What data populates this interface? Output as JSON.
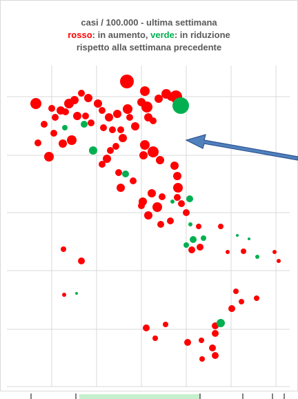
{
  "chart_data": {
    "type": "scatter",
    "title": "casi / 100.000 - ultima settimana",
    "subtitle": [
      "rosso",
      ": in aumento, ",
      "verde",
      ": in riduzione"
    ],
    "subtitle_colors": [
      "#ff0000",
      "#595959",
      "#00b050",
      "#595959"
    ],
    "note": "rispetto alla settimana precedente",
    "xlim": [
      10,
      420
    ],
    "ylim": [
      560,
      95
    ],
    "xticks": [
      75,
      140,
      205,
      270,
      335,
      400
    ],
    "yticks": [
      477,
      392,
      308,
      225,
      140
    ],
    "grid": true,
    "series": [
      {
        "color": "#ff0000",
        "x": [
          52,
          75,
          64,
          80,
          88,
          95,
          100,
          108,
          112,
          118,
          128,
          124,
          132,
          142,
          148,
          150,
          158,
          163,
          170,
          175,
          178,
          184,
          185,
          188,
          196,
          205,
          210,
          213,
          215,
          222,
          230,
          241,
          248,
          255,
          210,
          222,
          232,
          208,
          78,
          91,
          104,
          71,
          55,
          148,
          155,
          160,
          168,
          172,
          175,
          193,
          207,
          220,
          228,
          215,
          233,
          247,
          253,
          257,
          258,
          257,
          263,
          235,
          270,
          288,
          278,
          290,
          320,
          92,
          118,
          330,
          353,
          398,
          404,
          93,
          342,
          350,
          372,
          336,
          212,
          240,
          312,
          272,
          292,
          312,
          308,
          225,
          293,
          312,
          205
        ],
        "y": [
          150,
          157,
          180,
          170,
          160,
          162,
          150,
          145,
          168,
          135,
          142,
          168,
          178,
          150,
          160,
          185,
          170,
          188,
          165,
          188,
          200,
          118,
          158,
          170,
          183,
          148,
          132,
          155,
          170,
          175,
          143,
          136,
          140,
          140,
          210,
          220,
          232,
          225,
          193,
          208,
          203,
          227,
          207,
          238,
          230,
          218,
          212,
          250,
          272,
          262,
          292,
          280,
          300,
          312,
          325,
          320,
          240,
          255,
          272,
          286,
          295,
          285,
          308,
          328,
          362,
          358,
          328,
          361,
          378,
          365,
          364,
          365,
          378,
          427,
          422,
          437,
          432,
          447,
          475,
          470,
          472,
          496,
          493,
          483,
          504,
          490,
          520,
          515,
          298
        ],
        "sizes": [
          8,
          5,
          5,
          5,
          6,
          5,
          7,
          6,
          6,
          5,
          6,
          5,
          5,
          6,
          5,
          5,
          6,
          5,
          6,
          5,
          6,
          10,
          7,
          5,
          6,
          6,
          7,
          8,
          6,
          5,
          6,
          7,
          6,
          9,
          7,
          8,
          6,
          6,
          5,
          6,
          7,
          7,
          5,
          5,
          6,
          5,
          5,
          5,
          6,
          5,
          6,
          6,
          7,
          6,
          5,
          5,
          6,
          6,
          7,
          5,
          5,
          5,
          5,
          4,
          5,
          5,
          4,
          4,
          5,
          3,
          4,
          3,
          3,
          3,
          4,
          4,
          4,
          5,
          5,
          4,
          5,
          5,
          4,
          5,
          5,
          4,
          4,
          5,
          5
        ]
      },
      {
        "color": "#00b050",
        "x": [
          262,
          94,
          122,
          135,
          182,
          250,
          275,
          276,
          280,
          295,
          344,
          361,
          373,
          111,
          320,
          270
        ],
        "y": [
          153,
          185,
          180,
          218,
          252,
          292,
          288,
          325,
          347,
          345,
          341,
          346,
          372,
          425,
          468,
          355
        ],
        "sizes": [
          12,
          4,
          5,
          6,
          5,
          3,
          5,
          3,
          5,
          4,
          2,
          2,
          3,
          2,
          6,
          4
        ]
      }
    ]
  }
}
